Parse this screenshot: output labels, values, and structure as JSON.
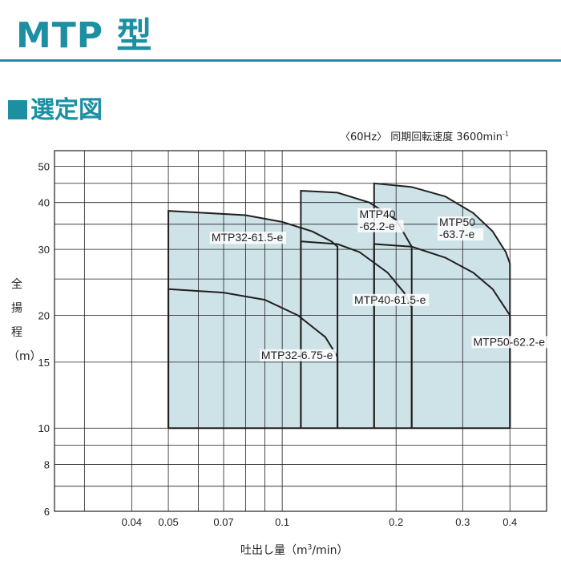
{
  "header": {
    "title": "MTP 型",
    "section": "選定図"
  },
  "chart_data": {
    "type": "area",
    "speed_note": "〈60Hz〉 同期回転速度 3600min",
    "speed_unit_sup": "-1",
    "ylabel": [
      "全",
      "揚",
      "程",
      "（m）"
    ],
    "xlabel_prefix": "吐出し量（m",
    "xlabel_sup": "3",
    "xlabel_suffix": "/min）",
    "x_scale": "log",
    "y_scale": "log",
    "xlim": [
      0.025,
      0.5
    ],
    "ylim": [
      6,
      55
    ],
    "grid": true,
    "x_ticks": [
      {
        "value": 0.04,
        "label": "0.04"
      },
      {
        "value": 0.05,
        "label": "0.05"
      },
      {
        "value": 0.07,
        "label": "0.07"
      },
      {
        "value": 0.1,
        "label": "0.1"
      },
      {
        "value": 0.2,
        "label": "0.2"
      },
      {
        "value": 0.3,
        "label": "0.3"
      },
      {
        "value": 0.4,
        "label": "0.4"
      }
    ],
    "y_ticks": [
      {
        "value": 6,
        "label": "6"
      },
      {
        "value": 8,
        "label": "8"
      },
      {
        "value": 10,
        "label": "10"
      },
      {
        "value": 15,
        "label": "15"
      },
      {
        "value": 20,
        "label": "20"
      },
      {
        "value": 30,
        "label": "30"
      },
      {
        "value": 40,
        "label": "40"
      },
      {
        "value": 50,
        "label": "50"
      }
    ],
    "colors": {
      "fill": "#cde3e8",
      "line": "#231f20",
      "grid": "#231f20",
      "accent": "#1c8fa3"
    },
    "series": [
      {
        "name": "MTP32-61.5-e",
        "boundary": [
          [
            0.05,
            10
          ],
          [
            0.05,
            38
          ],
          [
            0.08,
            37
          ],
          [
            0.1,
            35.5
          ],
          [
            0.12,
            33.5
          ],
          [
            0.135,
            31.5
          ],
          [
            0.14,
            30.5
          ],
          [
            0.14,
            10
          ]
        ]
      },
      {
        "name": "MTP32-6.75-e",
        "boundary": [
          [
            0.05,
            10
          ],
          [
            0.05,
            23.5
          ],
          [
            0.07,
            23
          ],
          [
            0.09,
            22
          ],
          [
            0.11,
            20
          ],
          [
            0.13,
            17.5
          ],
          [
            0.14,
            15.5
          ],
          [
            0.14,
            10
          ]
        ]
      },
      {
        "name": "MTP40-62.2-e",
        "boundary": [
          [
            0.112,
            10
          ],
          [
            0.112,
            43
          ],
          [
            0.14,
            42.5
          ],
          [
            0.17,
            40
          ],
          [
            0.2,
            36
          ],
          [
            0.22,
            30.5
          ],
          [
            0.22,
            10
          ]
        ]
      },
      {
        "name": "MTP40-61.5-e",
        "boundary": [
          [
            0.112,
            10
          ],
          [
            0.112,
            31.5
          ],
          [
            0.14,
            31
          ],
          [
            0.16,
            29.5
          ],
          [
            0.19,
            26
          ],
          [
            0.21,
            23
          ],
          [
            0.22,
            21
          ],
          [
            0.22,
            10
          ]
        ]
      },
      {
        "name": "MTP50-63.7-e",
        "boundary": [
          [
            0.175,
            10
          ],
          [
            0.175,
            45
          ],
          [
            0.22,
            44
          ],
          [
            0.27,
            41.5
          ],
          [
            0.32,
            37.5
          ],
          [
            0.36,
            33.5
          ],
          [
            0.39,
            29.5
          ],
          [
            0.4,
            27.5
          ],
          [
            0.4,
            10
          ]
        ]
      },
      {
        "name": "MTP50-62.2-e",
        "boundary": [
          [
            0.175,
            10
          ],
          [
            0.175,
            31
          ],
          [
            0.22,
            30.5
          ],
          [
            0.27,
            28.5
          ],
          [
            0.32,
            26
          ],
          [
            0.36,
            23.5
          ],
          [
            0.4,
            20
          ],
          [
            0.4,
            10
          ]
        ]
      }
    ],
    "labels": [
      {
        "series": "MTP32-61.5-e",
        "lines": [
          "MTP32-61.5-e"
        ],
        "x": 0.065,
        "y": 31.5
      },
      {
        "series": "MTP32-6.75-e",
        "lines": [
          "MTP32-6.75-e"
        ],
        "x": 0.088,
        "y": 15.3
      },
      {
        "series": "MTP40-62.2-e",
        "lines": [
          "MTP40",
          "-62.2-e"
        ],
        "x": 0.16,
        "y": 36.4
      },
      {
        "series": "MTP40-61.5-e",
        "lines": [
          "MTP40-61.5-e"
        ],
        "x": 0.155,
        "y": 21.5
      },
      {
        "series": "MTP50-63.7-e",
        "lines": [
          "MTP50",
          "-63.7-e"
        ],
        "x": 0.26,
        "y": 34.6
      },
      {
        "series": "MTP50-62.2-e",
        "lines": [
          "MTP50-62.2-e"
        ],
        "x": 0.32,
        "y": 16.6
      }
    ]
  }
}
